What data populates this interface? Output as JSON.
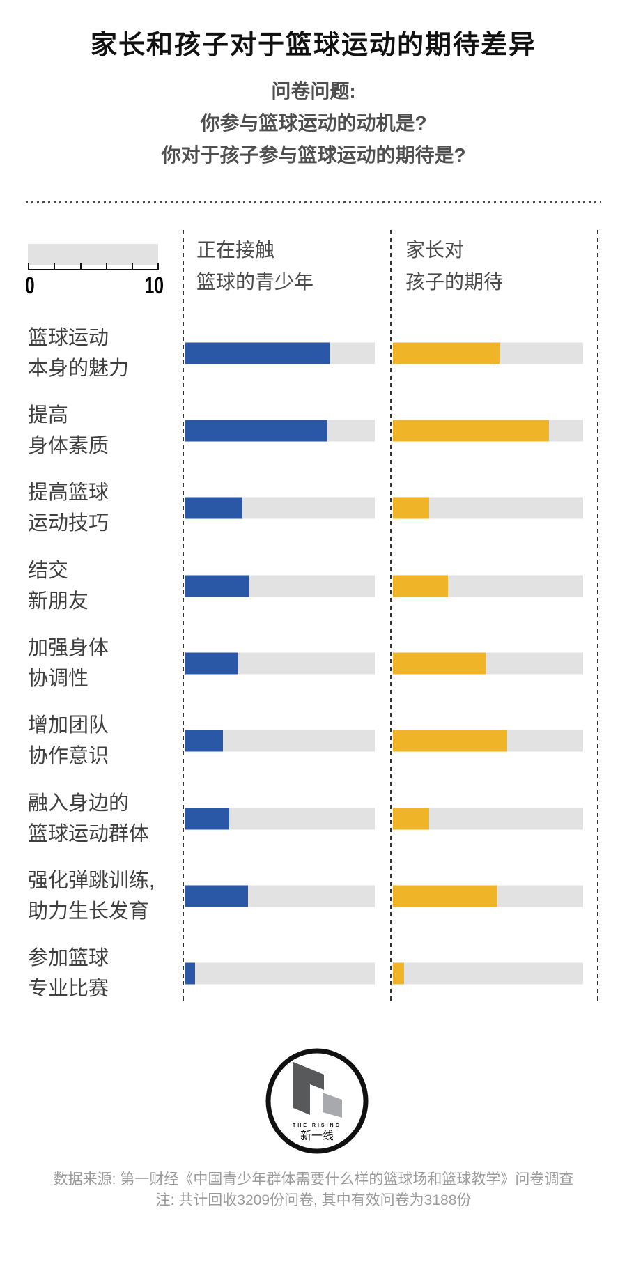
{
  "title": "家长和孩子对于篮球运动的期待差异",
  "subtitle": {
    "lines": [
      "问卷问题:",
      "你参与篮球运动的动机是?",
      "你对于孩子参与篮球运动的期待是?"
    ]
  },
  "legend": {
    "min": "0",
    "max": "10"
  },
  "columns": [
    {
      "line1": "正在接触",
      "line2": "篮球的青少年"
    },
    {
      "line1": "家长对",
      "line2": "孩子的期待"
    }
  ],
  "chart_data": {
    "type": "bar",
    "orientation": "horizontal",
    "xlim": [
      0,
      10
    ],
    "grid": false,
    "categories": [
      [
        "篮球运动",
        "本身的魅力"
      ],
      [
        "提高",
        "身体素质"
      ],
      [
        "提高篮球",
        "运动技巧"
      ],
      [
        "结交",
        "新朋友"
      ],
      [
        "加强身体",
        "协调性"
      ],
      [
        "增加团队",
        "协作意识"
      ],
      [
        "融入身边的",
        "篮球运动群体"
      ],
      [
        "强化弹跳训练,",
        "助力生长发育"
      ],
      [
        "参加篮球",
        "专业比赛"
      ]
    ],
    "series": [
      {
        "name": "正在接触篮球的青少年",
        "color": "#2b57a7",
        "values": [
          7.6,
          7.5,
          3.0,
          3.4,
          2.8,
          2.0,
          2.3,
          3.3,
          0.5
        ]
      },
      {
        "name": "家长对孩子的期待",
        "color": "#f0b429",
        "values": [
          5.6,
          8.2,
          1.9,
          2.9,
          4.9,
          6.0,
          1.9,
          5.5,
          0.6
        ]
      }
    ],
    "track_color": "#e2e2e2"
  },
  "footer": {
    "logo": {
      "text_en": "THE RISING",
      "text_zh": "新一线"
    },
    "source": "数据来源: 第一财经《中国青少年群体需要什么样的篮球场和篮球教学》问卷调查",
    "note": "注: 共计回收3209份问卷, 其中有效问卷为3188份"
  }
}
